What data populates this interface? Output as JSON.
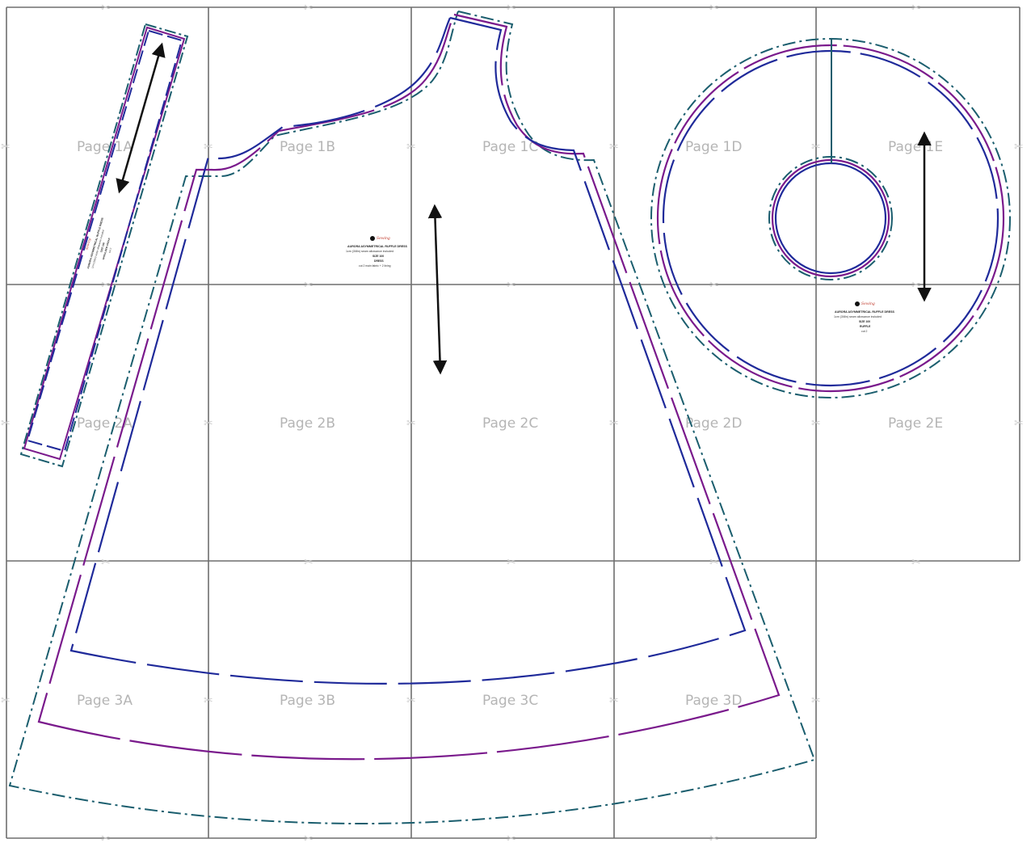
{
  "colors": {
    "grid": "#6e6e6e",
    "size_small": "#1f2a9a",
    "size_medium": "#7a1a8c",
    "size_large": "#1b5e6e",
    "page_label": "#b5b5b5"
  },
  "pages": [
    {
      "label": "Page 1A"
    },
    {
      "label": "Page 1B"
    },
    {
      "label": "Page 1C"
    },
    {
      "label": "Page 1D"
    },
    {
      "label": "Page 1E"
    },
    {
      "label": "Page 2A"
    },
    {
      "label": "Page 2B"
    },
    {
      "label": "Page 2C"
    },
    {
      "label": "Page 2D"
    },
    {
      "label": "Page 2E"
    },
    {
      "label": "Page 3A"
    },
    {
      "label": "Page 3B"
    },
    {
      "label": "Page 3C"
    },
    {
      "label": "Page 3D"
    }
  ],
  "pieces": {
    "strap": {
      "title": "AURORA ASYMMETRICAL RUFFLE DRESS",
      "seam": "1cm (3/8in) seam allowance included",
      "size": "SIZE 100",
      "name": "SHOULDER STRAP",
      "cut": "cut 2"
    },
    "dress": {
      "title": "AURORA ASYMMETRICAL RUFFLE DRESS",
      "seam": "1cm (3/8in) seam allowance included",
      "size": "SIZE 100",
      "name": "DRESS",
      "cut": "cut 2 main fabric + 2 lining"
    },
    "ruffle": {
      "title": "AURORA ASYMMETRICAL RUFFLE DRESS",
      "seam": "1cm (3/8in) seam allowance included",
      "size": "SIZE 100",
      "name": "RUFFLE",
      "cut": "cut 2"
    }
  },
  "icons": {
    "alignment_mark": "scissors-icon",
    "grainline": "double-arrow-icon",
    "logo": "brand-logo-icon"
  }
}
